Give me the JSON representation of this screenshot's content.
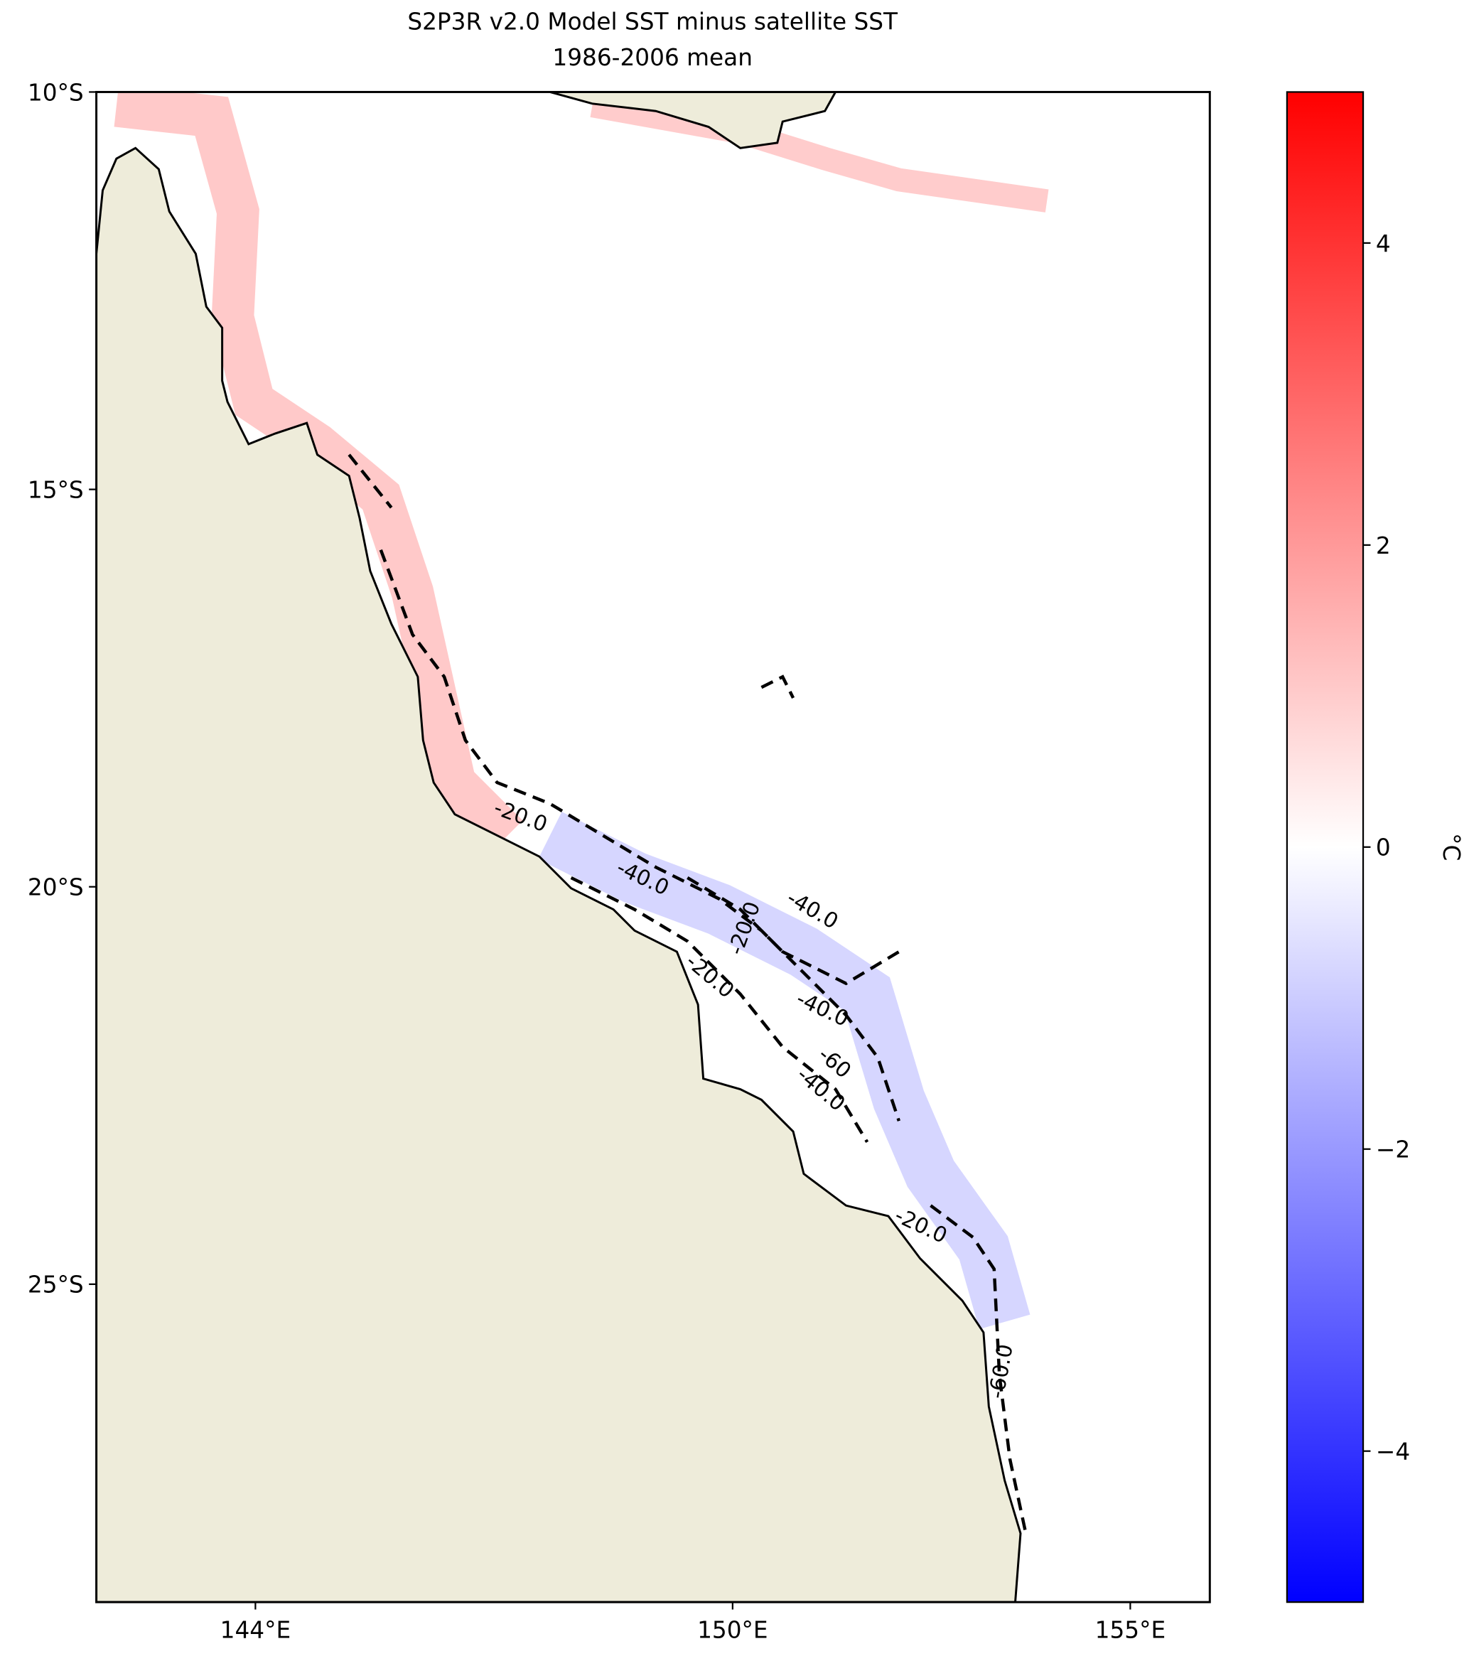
{
  "chart_data": {
    "type": "map",
    "title": "S2P3R v2.0 Model SST minus satellite SST",
    "subtitle": "1986-2006 mean",
    "xlim": [
      142,
      156
    ],
    "ylim": [
      -29,
      -10
    ],
    "xticks": [
      {
        "value": 144,
        "label": "144°E"
      },
      {
        "value": 150,
        "label": "150°E"
      },
      {
        "value": 155,
        "label": "155°E"
      }
    ],
    "yticks": [
      {
        "value": -10,
        "label": "10°S"
      },
      {
        "value": -15,
        "label": "15°S"
      },
      {
        "value": -20,
        "label": "20°S"
      },
      {
        "value": -25,
        "label": "25°S"
      }
    ],
    "colormap": "bwr",
    "clim": [
      -5,
      5
    ],
    "colorbar_ticks": [
      {
        "value": 4,
        "label": "4"
      },
      {
        "value": 2,
        "label": "2"
      },
      {
        "value": 0,
        "label": "0"
      },
      {
        "value": -2,
        "label": "−2"
      },
      {
        "value": -4,
        "label": "−4"
      }
    ],
    "colorbar_label": "°C",
    "contour_labels": [
      "-20.0",
      "-40.0",
      "-20.0",
      "-40.0",
      "-20.0",
      "-40.0",
      "-60",
      "-40.0",
      "-20.0",
      "-60.0"
    ]
  }
}
